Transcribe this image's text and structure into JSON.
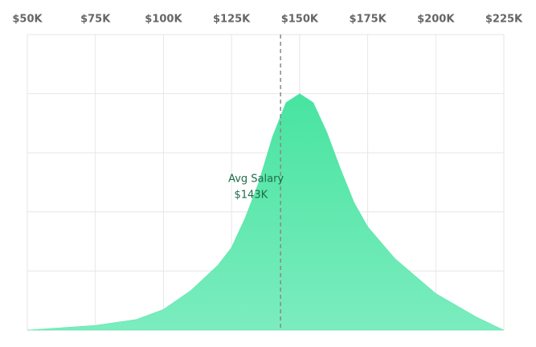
{
  "chart_data": {
    "type": "area",
    "x": [
      50,
      75,
      90,
      100,
      110,
      120,
      125,
      130,
      135,
      140,
      145,
      150,
      155,
      160,
      165,
      170,
      175,
      185,
      200,
      215,
      225
    ],
    "series": [
      {
        "color": "#52e5a5",
        "values": [
          0,
          0.08,
          0.18,
          0.35,
          0.67,
          1.1,
          1.4,
          1.9,
          2.5,
          3.27,
          3.85,
          4.0,
          3.85,
          3.35,
          2.73,
          2.16,
          1.75,
          1.21,
          0.62,
          0.22,
          0
        ]
      }
    ],
    "xlim": [
      50,
      225
    ],
    "xticks": [
      {
        "value": 50,
        "label": "$50K"
      },
      {
        "value": 75,
        "label": "$75K"
      },
      {
        "value": 100,
        "label": "$100K"
      },
      {
        "value": 125,
        "label": "$125K"
      },
      {
        "value": 150,
        "label": "$150K"
      },
      {
        "value": 175,
        "label": "$175K"
      },
      {
        "value": 200,
        "label": "$200K"
      },
      {
        "value": 225,
        "label": "$225K"
      }
    ],
    "ylim": [
      0,
      5
    ],
    "yticks": [
      0,
      1,
      2,
      3,
      4,
      5
    ],
    "grid": true,
    "annotation": {
      "text": "Avg Salary",
      "value": 143,
      "label": "$143K"
    }
  }
}
